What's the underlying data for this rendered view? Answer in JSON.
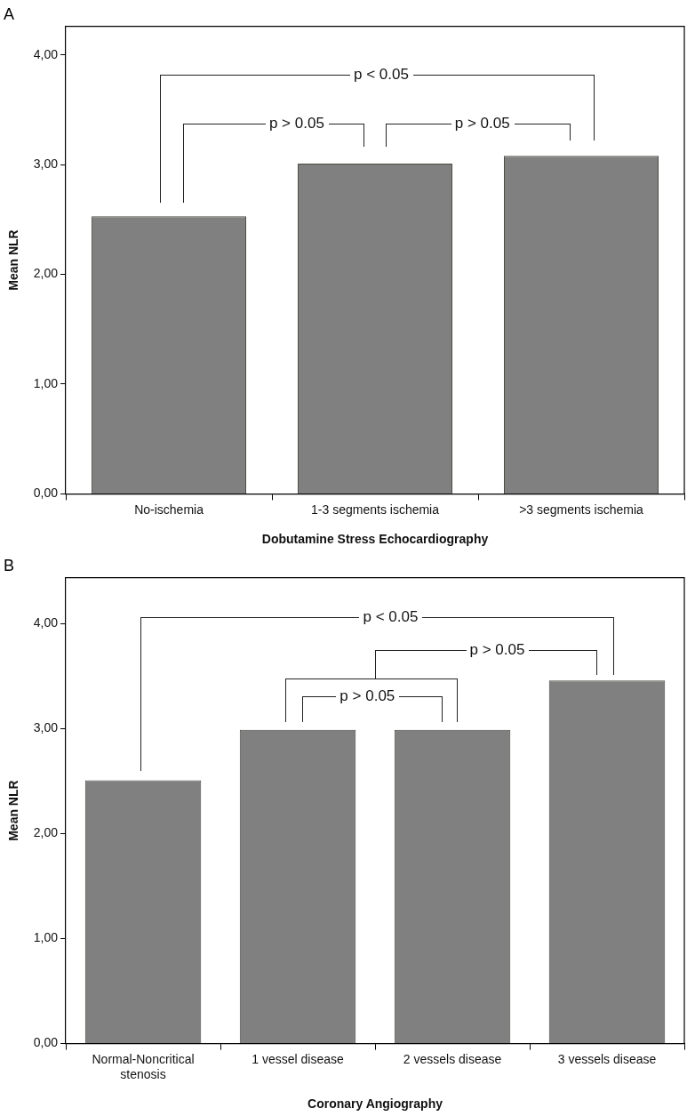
{
  "chart_data": [
    {
      "type": "bar",
      "title": "A",
      "xlabel": "Dobutamine Stress Echocardiography",
      "ylabel": "Mean NLR",
      "categories": [
        "No-ischemia",
        "1-3 segments ischemia",
        ">3 segments ischemia"
      ],
      "values": [
        2.53,
        3.01,
        3.08
      ],
      "color": "#808080",
      "ylim": [
        0,
        4.26
      ],
      "yticks": [
        {
          "value": 0,
          "label": "0,00"
        },
        {
          "value": 1,
          "label": "1,00"
        },
        {
          "value": 2,
          "label": "2,00"
        },
        {
          "value": 3,
          "label": "3,00"
        },
        {
          "value": 4,
          "label": "4,00"
        }
      ],
      "annotations": [
        "p < 0.05",
        "p > 0.05",
        "p > 0.05"
      ]
    },
    {
      "type": "bar",
      "title": "B",
      "xlabel": "Coronary Angiography",
      "ylabel": "Mean NLR",
      "categories": [
        "Normal-Noncritical stenosis",
        "1 vessel disease",
        "2 vessels disease",
        "3 vessels disease"
      ],
      "values": [
        2.51,
        2.99,
        2.99,
        3.46
      ],
      "color": "#808080",
      "ylim": [
        0,
        4.44
      ],
      "yticks": [
        {
          "value": 0,
          "label": "0,00"
        },
        {
          "value": 1,
          "label": "1,00"
        },
        {
          "value": 2,
          "label": "2,00"
        },
        {
          "value": 3,
          "label": "3,00"
        },
        {
          "value": 4,
          "label": "4,00"
        }
      ],
      "annotations": [
        "p < 0.05",
        "p > 0.05",
        "p > 0.05"
      ]
    }
  ]
}
